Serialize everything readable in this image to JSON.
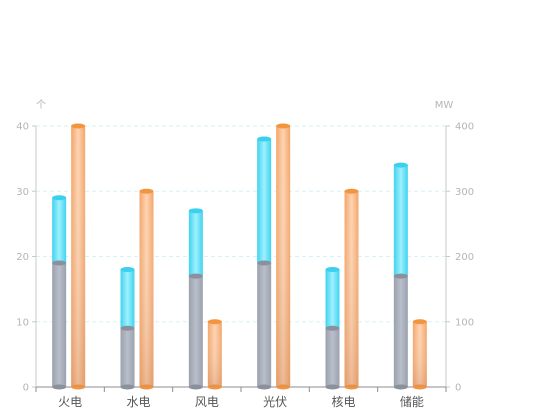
{
  "chart_data": {
    "type": "bar",
    "categories": [
      "火电",
      "水电",
      "风电",
      "光伏",
      "核电",
      "储能"
    ],
    "left_axis": {
      "unit": "个",
      "ylim": [
        0,
        40
      ],
      "ticks": [
        0,
        10,
        20,
        30,
        40
      ]
    },
    "right_axis": {
      "unit": "MW",
      "ylim": [
        0,
        400
      ],
      "ticks": [
        0,
        100,
        200,
        300,
        400
      ]
    },
    "series": [
      {
        "axis": "left",
        "stack": "count",
        "values": [
          19,
          9,
          17,
          19,
          9,
          17
        ],
        "color": "#a9b0bc"
      },
      {
        "axis": "left",
        "stack": "count",
        "values": [
          10,
          9,
          10,
          19,
          9,
          17
        ],
        "color": "#5fdcf5"
      },
      {
        "axis": "right",
        "stack": "capacity",
        "values": [
          400,
          300,
          100,
          400,
          300,
          100
        ],
        "color": "#f7b07a"
      }
    ],
    "grid": true,
    "legend": "none"
  }
}
